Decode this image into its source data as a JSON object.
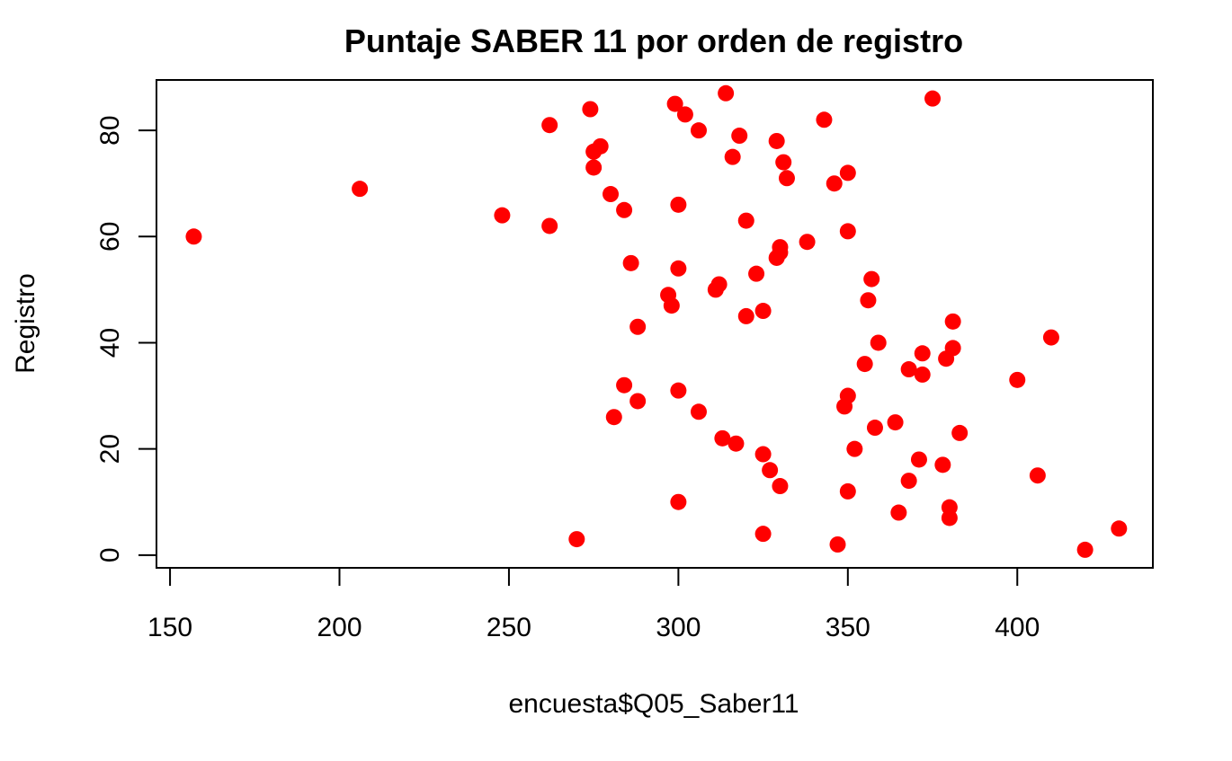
{
  "chart_data": {
    "type": "scatter",
    "title": "Puntaje SABER 11 por orden de registro",
    "xlabel": "encuesta$Q05_Saber11",
    "ylabel": "Registro",
    "xlim": [
      146,
      440
    ],
    "ylim": [
      -2.4,
      89.5
    ],
    "xticks": [
      150,
      200,
      250,
      300,
      350,
      400
    ],
    "yticks": [
      0,
      20,
      40,
      60,
      80
    ],
    "point_color": "#ff0000",
    "grid": false,
    "legend": "none",
    "points": [
      {
        "x": 420,
        "y": 1
      },
      {
        "x": 347,
        "y": 2
      },
      {
        "x": 270,
        "y": 3
      },
      {
        "x": 325,
        "y": 4
      },
      {
        "x": 430,
        "y": 5
      },
      {
        "x": 380,
        "y": 7
      },
      {
        "x": 365,
        "y": 8
      },
      {
        "x": 380,
        "y": 9
      },
      {
        "x": 300,
        "y": 10
      },
      {
        "x": 350,
        "y": 12
      },
      {
        "x": 330,
        "y": 13
      },
      {
        "x": 368,
        "y": 14
      },
      {
        "x": 406,
        "y": 15
      },
      {
        "x": 327,
        "y": 16
      },
      {
        "x": 378,
        "y": 17
      },
      {
        "x": 371,
        "y": 18
      },
      {
        "x": 325,
        "y": 19
      },
      {
        "x": 352,
        "y": 20
      },
      {
        "x": 317,
        "y": 21
      },
      {
        "x": 313,
        "y": 22
      },
      {
        "x": 383,
        "y": 23
      },
      {
        "x": 358,
        "y": 24
      },
      {
        "x": 364,
        "y": 25
      },
      {
        "x": 281,
        "y": 26
      },
      {
        "x": 306,
        "y": 27
      },
      {
        "x": 349,
        "y": 28
      },
      {
        "x": 288,
        "y": 29
      },
      {
        "x": 350,
        "y": 30
      },
      {
        "x": 300,
        "y": 31
      },
      {
        "x": 284,
        "y": 32
      },
      {
        "x": 400,
        "y": 33
      },
      {
        "x": 372,
        "y": 34
      },
      {
        "x": 368,
        "y": 35
      },
      {
        "x": 355,
        "y": 36
      },
      {
        "x": 379,
        "y": 37
      },
      {
        "x": 372,
        "y": 38
      },
      {
        "x": 381,
        "y": 39
      },
      {
        "x": 359,
        "y": 40
      },
      {
        "x": 410,
        "y": 41
      },
      {
        "x": 288,
        "y": 43
      },
      {
        "x": 381,
        "y": 44
      },
      {
        "x": 320,
        "y": 45
      },
      {
        "x": 325,
        "y": 46
      },
      {
        "x": 298,
        "y": 47
      },
      {
        "x": 356,
        "y": 48
      },
      {
        "x": 297,
        "y": 49
      },
      {
        "x": 311,
        "y": 50
      },
      {
        "x": 312,
        "y": 51
      },
      {
        "x": 357,
        "y": 52
      },
      {
        "x": 323,
        "y": 53
      },
      {
        "x": 300,
        "y": 54
      },
      {
        "x": 286,
        "y": 55
      },
      {
        "x": 329,
        "y": 56
      },
      {
        "x": 330,
        "y": 57
      },
      {
        "x": 330,
        "y": 58
      },
      {
        "x": 338,
        "y": 59
      },
      {
        "x": 157,
        "y": 60
      },
      {
        "x": 350,
        "y": 61
      },
      {
        "x": 262,
        "y": 62
      },
      {
        "x": 320,
        "y": 63
      },
      {
        "x": 248,
        "y": 64
      },
      {
        "x": 284,
        "y": 65
      },
      {
        "x": 300,
        "y": 66
      },
      {
        "x": 280,
        "y": 68
      },
      {
        "x": 206,
        "y": 69
      },
      {
        "x": 346,
        "y": 70
      },
      {
        "x": 332,
        "y": 71
      },
      {
        "x": 350,
        "y": 72
      },
      {
        "x": 275,
        "y": 73
      },
      {
        "x": 331,
        "y": 74
      },
      {
        "x": 316,
        "y": 75
      },
      {
        "x": 275,
        "y": 76
      },
      {
        "x": 277,
        "y": 77
      },
      {
        "x": 329,
        "y": 78
      },
      {
        "x": 318,
        "y": 79
      },
      {
        "x": 306,
        "y": 80
      },
      {
        "x": 262,
        "y": 81
      },
      {
        "x": 343,
        "y": 82
      },
      {
        "x": 302,
        "y": 83
      },
      {
        "x": 274,
        "y": 84
      },
      {
        "x": 299,
        "y": 85
      },
      {
        "x": 375,
        "y": 86
      },
      {
        "x": 314,
        "y": 87
      }
    ]
  }
}
